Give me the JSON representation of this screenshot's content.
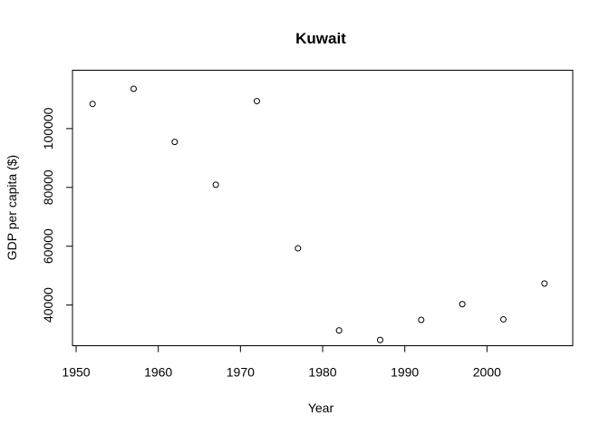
{
  "chart_data": {
    "type": "scatter",
    "title": "Kuwait",
    "xlabel": "Year",
    "ylabel": "GDP per capita ($)",
    "xlim": [
      1950,
      2010
    ],
    "ylim": [
      28000,
      118000
    ],
    "x_ticks": [
      1950,
      1960,
      1970,
      1980,
      1990,
      2000
    ],
    "y_ticks": [
      40000,
      60000,
      80000,
      100000
    ],
    "x_tick_labels": [
      "1950",
      "1960",
      "1970",
      "1980",
      "1990",
      "2000"
    ],
    "y_tick_labels": [
      "40000",
      "60000",
      "80000",
      "100000"
    ],
    "grid": false,
    "legend": "none",
    "series": [
      {
        "x": [
          1952,
          1957,
          1962,
          1967,
          1972,
          1977,
          1982,
          1987,
          1992,
          1997,
          2002,
          2007
        ],
        "y": [
          108382,
          113523,
          95458,
          80895,
          109348,
          59265,
          31354,
          28118,
          34933,
          40301,
          35110,
          47307
        ]
      }
    ]
  }
}
